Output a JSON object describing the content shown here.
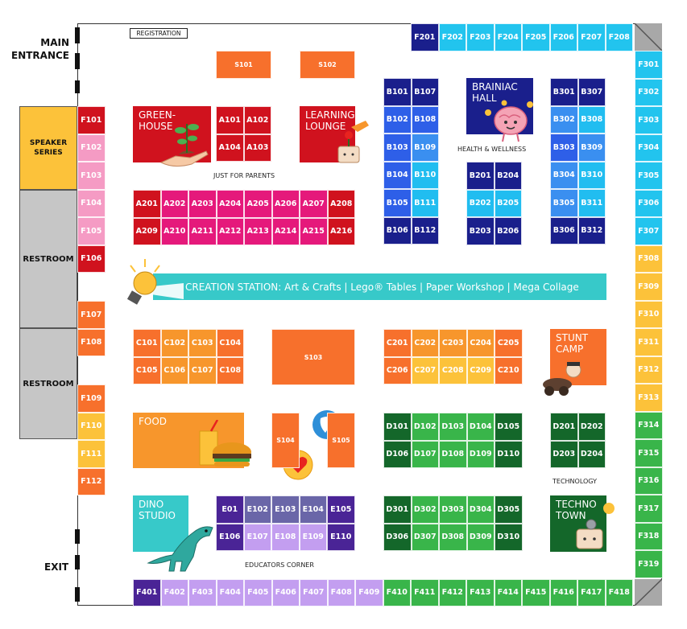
{
  "labels": {
    "main_entrance": [
      "MAIN",
      "ENTRANCE"
    ],
    "exit": "EXIT",
    "registration": "REGISTRATION",
    "speaker_series": [
      "SPEAKER",
      "SERIES"
    ],
    "restroom": "RESTROOM",
    "just_for_parents": "JUST FOR PARENTS",
    "health_wellness": "HEALTH & WELLNESS",
    "technology": "TECHNOLOGY",
    "educators_corner": "EDUCATORS CORNER"
  },
  "areas": {
    "greenhouse": [
      "GREEN-",
      "HOUSE"
    ],
    "learning_lounge": [
      "LEARNING",
      "LOUNGE"
    ],
    "brainiac_hall": [
      "BRAINIAC",
      "HALL"
    ],
    "stunt_camp": [
      "STUNT",
      "CAMP"
    ],
    "food": "FOOD",
    "dino_studio": [
      "DINO",
      "STUDIO"
    ],
    "techno_town": [
      "TECHNO",
      "TOWN"
    ],
    "creation_station": "CREATION STATION:  Art & Crafts  |  Lego® Tables  |  Paper Workshop  |  Mega Collage"
  },
  "colors": {
    "dark_red": "#d0121e",
    "magenta": "#e5197b",
    "light_pink": "#f59bc4",
    "red": "#e8231f",
    "orange": "#f7702c",
    "light_orange": "#f7962c",
    "yellow": "#fcc23a",
    "navy": "#1a1f8c",
    "royal_blue": "#2e5fe8",
    "medium_blue": "#3a8ff0",
    "light_blue": "#21bdf0",
    "cyan": "#22c4ee",
    "dark_green": "#14672a",
    "green": "#39b54a",
    "purple": "#4a2496",
    "slate_purple": "#6a66a8",
    "lavender": "#c39ef0",
    "teal": "#37c9c9",
    "gray": "#c6c6c6"
  },
  "booths": [
    {
      "id": "F201",
      "c": "navy"
    },
    {
      "id": "F202",
      "c": "cyan"
    },
    {
      "id": "F203",
      "c": "cyan"
    },
    {
      "id": "F204",
      "c": "cyan"
    },
    {
      "id": "F205",
      "c": "cyan"
    },
    {
      "id": "F206",
      "c": "cyan"
    },
    {
      "id": "F207",
      "c": "cyan"
    },
    {
      "id": "F208",
      "c": "cyan"
    },
    {
      "id": "F301",
      "c": "cyan"
    },
    {
      "id": "F302",
      "c": "cyan"
    },
    {
      "id": "F303",
      "c": "cyan"
    },
    {
      "id": "F304",
      "c": "cyan"
    },
    {
      "id": "F305",
      "c": "cyan"
    },
    {
      "id": "F306",
      "c": "cyan"
    },
    {
      "id": "F307",
      "c": "cyan"
    },
    {
      "id": "F308",
      "c": "yellow"
    },
    {
      "id": "F309",
      "c": "yellow"
    },
    {
      "id": "F310",
      "c": "yellow"
    },
    {
      "id": "F311",
      "c": "yellow"
    },
    {
      "id": "F312",
      "c": "yellow"
    },
    {
      "id": "F313",
      "c": "yellow"
    },
    {
      "id": "F314",
      "c": "green"
    },
    {
      "id": "F315",
      "c": "green"
    },
    {
      "id": "F316",
      "c": "green"
    },
    {
      "id": "F317",
      "c": "green"
    },
    {
      "id": "F318",
      "c": "green"
    },
    {
      "id": "F319",
      "c": "green"
    },
    {
      "id": "F101",
      "c": "dark_red"
    },
    {
      "id": "F102",
      "c": "light_pink"
    },
    {
      "id": "F103",
      "c": "light_pink"
    },
    {
      "id": "F104",
      "c": "light_pink"
    },
    {
      "id": "F105",
      "c": "light_pink"
    },
    {
      "id": "F106",
      "c": "dark_red"
    },
    {
      "id": "F107",
      "c": "orange"
    },
    {
      "id": "F108",
      "c": "orange"
    },
    {
      "id": "F109",
      "c": "orange"
    },
    {
      "id": "F110",
      "c": "yellow"
    },
    {
      "id": "F111",
      "c": "yellow"
    },
    {
      "id": "F112",
      "c": "orange"
    },
    {
      "id": "F401",
      "c": "purple"
    },
    {
      "id": "F402",
      "c": "lavender"
    },
    {
      "id": "F403",
      "c": "lavender"
    },
    {
      "id": "F404",
      "c": "lavender"
    },
    {
      "id": "F405",
      "c": "lavender"
    },
    {
      "id": "F406",
      "c": "lavender"
    },
    {
      "id": "F407",
      "c": "lavender"
    },
    {
      "id": "F408",
      "c": "lavender"
    },
    {
      "id": "F409",
      "c": "lavender"
    },
    {
      "id": "F410",
      "c": "green"
    },
    {
      "id": "F411",
      "c": "green"
    },
    {
      "id": "F412",
      "c": "green"
    },
    {
      "id": "F413",
      "c": "green"
    },
    {
      "id": "F414",
      "c": "green"
    },
    {
      "id": "F415",
      "c": "green"
    },
    {
      "id": "F416",
      "c": "green"
    },
    {
      "id": "F417",
      "c": "green"
    },
    {
      "id": "F418",
      "c": "green"
    },
    {
      "id": "S101",
      "c": "orange"
    },
    {
      "id": "S102",
      "c": "orange"
    },
    {
      "id": "S103",
      "c": "orange"
    },
    {
      "id": "S104",
      "c": "orange"
    },
    {
      "id": "S105",
      "c": "orange"
    },
    {
      "id": "A101",
      "c": "dark_red"
    },
    {
      "id": "A102",
      "c": "dark_red"
    },
    {
      "id": "A104",
      "c": "dark_red"
    },
    {
      "id": "A103",
      "c": "dark_red"
    },
    {
      "id": "A201",
      "c": "dark_red"
    },
    {
      "id": "A202",
      "c": "magenta"
    },
    {
      "id": "A203",
      "c": "magenta"
    },
    {
      "id": "A204",
      "c": "magenta"
    },
    {
      "id": "A205",
      "c": "magenta"
    },
    {
      "id": "A206",
      "c": "magenta"
    },
    {
      "id": "A207",
      "c": "magenta"
    },
    {
      "id": "A208",
      "c": "dark_red"
    },
    {
      "id": "A209",
      "c": "dark_red"
    },
    {
      "id": "A210",
      "c": "magenta"
    },
    {
      "id": "A211",
      "c": "magenta"
    },
    {
      "id": "A212",
      "c": "magenta"
    },
    {
      "id": "A213",
      "c": "magenta"
    },
    {
      "id": "A214",
      "c": "magenta"
    },
    {
      "id": "A215",
      "c": "magenta"
    },
    {
      "id": "A216",
      "c": "dark_red"
    },
    {
      "id": "B101",
      "c": "navy"
    },
    {
      "id": "B107",
      "c": "navy"
    },
    {
      "id": "B102",
      "c": "royal_blue"
    },
    {
      "id": "B108",
      "c": "royal_blue"
    },
    {
      "id": "B103",
      "c": "royal_blue"
    },
    {
      "id": "B109",
      "c": "medium_blue"
    },
    {
      "id": "B104",
      "c": "royal_blue"
    },
    {
      "id": "B110",
      "c": "light_blue"
    },
    {
      "id": "B105",
      "c": "royal_blue"
    },
    {
      "id": "B111",
      "c": "light_blue"
    },
    {
      "id": "B106",
      "c": "navy"
    },
    {
      "id": "B112",
      "c": "navy"
    },
    {
      "id": "B201",
      "c": "navy"
    },
    {
      "id": "B204",
      "c": "navy"
    },
    {
      "id": "B202",
      "c": "light_blue"
    },
    {
      "id": "B205",
      "c": "light_blue"
    },
    {
      "id": "B203",
      "c": "navy"
    },
    {
      "id": "B206",
      "c": "navy"
    },
    {
      "id": "B301",
      "c": "navy"
    },
    {
      "id": "B307",
      "c": "navy"
    },
    {
      "id": "B302",
      "c": "medium_blue"
    },
    {
      "id": "B308",
      "c": "light_blue"
    },
    {
      "id": "B303",
      "c": "royal_blue"
    },
    {
      "id": "B309",
      "c": "medium_blue"
    },
    {
      "id": "B304",
      "c": "medium_blue"
    },
    {
      "id": "B310",
      "c": "light_blue"
    },
    {
      "id": "B305",
      "c": "medium_blue"
    },
    {
      "id": "B311",
      "c": "light_blue"
    },
    {
      "id": "B306",
      "c": "navy"
    },
    {
      "id": "B312",
      "c": "navy"
    },
    {
      "id": "C101",
      "c": "orange"
    },
    {
      "id": "C102",
      "c": "light_orange"
    },
    {
      "id": "C103",
      "c": "light_orange"
    },
    {
      "id": "C104",
      "c": "orange"
    },
    {
      "id": "C105",
      "c": "orange"
    },
    {
      "id": "C106",
      "c": "light_orange"
    },
    {
      "id": "C107",
      "c": "light_orange"
    },
    {
      "id": "C108",
      "c": "orange"
    },
    {
      "id": "C201",
      "c": "orange"
    },
    {
      "id": "C202",
      "c": "light_orange"
    },
    {
      "id": "C203",
      "c": "light_orange"
    },
    {
      "id": "C204",
      "c": "light_orange"
    },
    {
      "id": "C205",
      "c": "orange"
    },
    {
      "id": "C206",
      "c": "orange"
    },
    {
      "id": "C207",
      "c": "yellow"
    },
    {
      "id": "C208",
      "c": "yellow"
    },
    {
      "id": "C209",
      "c": "yellow"
    },
    {
      "id": "C210",
      "c": "orange"
    },
    {
      "id": "D101",
      "c": "dark_green"
    },
    {
      "id": "D102",
      "c": "green"
    },
    {
      "id": "D103",
      "c": "green"
    },
    {
      "id": "D104",
      "c": "green"
    },
    {
      "id": "D105",
      "c": "dark_green"
    },
    {
      "id": "D106",
      "c": "dark_green"
    },
    {
      "id": "D107",
      "c": "green"
    },
    {
      "id": "D108",
      "c": "green"
    },
    {
      "id": "D109",
      "c": "green"
    },
    {
      "id": "D110",
      "c": "dark_green"
    },
    {
      "id": "D201",
      "c": "dark_green"
    },
    {
      "id": "D202",
      "c": "dark_green"
    },
    {
      "id": "D203",
      "c": "dark_green"
    },
    {
      "id": "D204",
      "c": "dark_green"
    },
    {
      "id": "D301",
      "c": "dark_green"
    },
    {
      "id": "D302",
      "c": "green"
    },
    {
      "id": "D303",
      "c": "green"
    },
    {
      "id": "D304",
      "c": "green"
    },
    {
      "id": "D305",
      "c": "dark_green"
    },
    {
      "id": "D306",
      "c": "dark_green"
    },
    {
      "id": "D307",
      "c": "green"
    },
    {
      "id": "D308",
      "c": "green"
    },
    {
      "id": "D309",
      "c": "green"
    },
    {
      "id": "D310",
      "c": "dark_green"
    },
    {
      "id": "E01",
      "c": "purple"
    },
    {
      "id": "E102",
      "c": "slate_purple"
    },
    {
      "id": "E103",
      "c": "slate_purple"
    },
    {
      "id": "E104",
      "c": "slate_purple"
    },
    {
      "id": "E105",
      "c": "purple"
    },
    {
      "id": "E106",
      "c": "purple"
    },
    {
      "id": "E107",
      "c": "lavender"
    },
    {
      "id": "E108",
      "c": "lavender"
    },
    {
      "id": "E109",
      "c": "lavender"
    },
    {
      "id": "E110",
      "c": "purple"
    }
  ]
}
